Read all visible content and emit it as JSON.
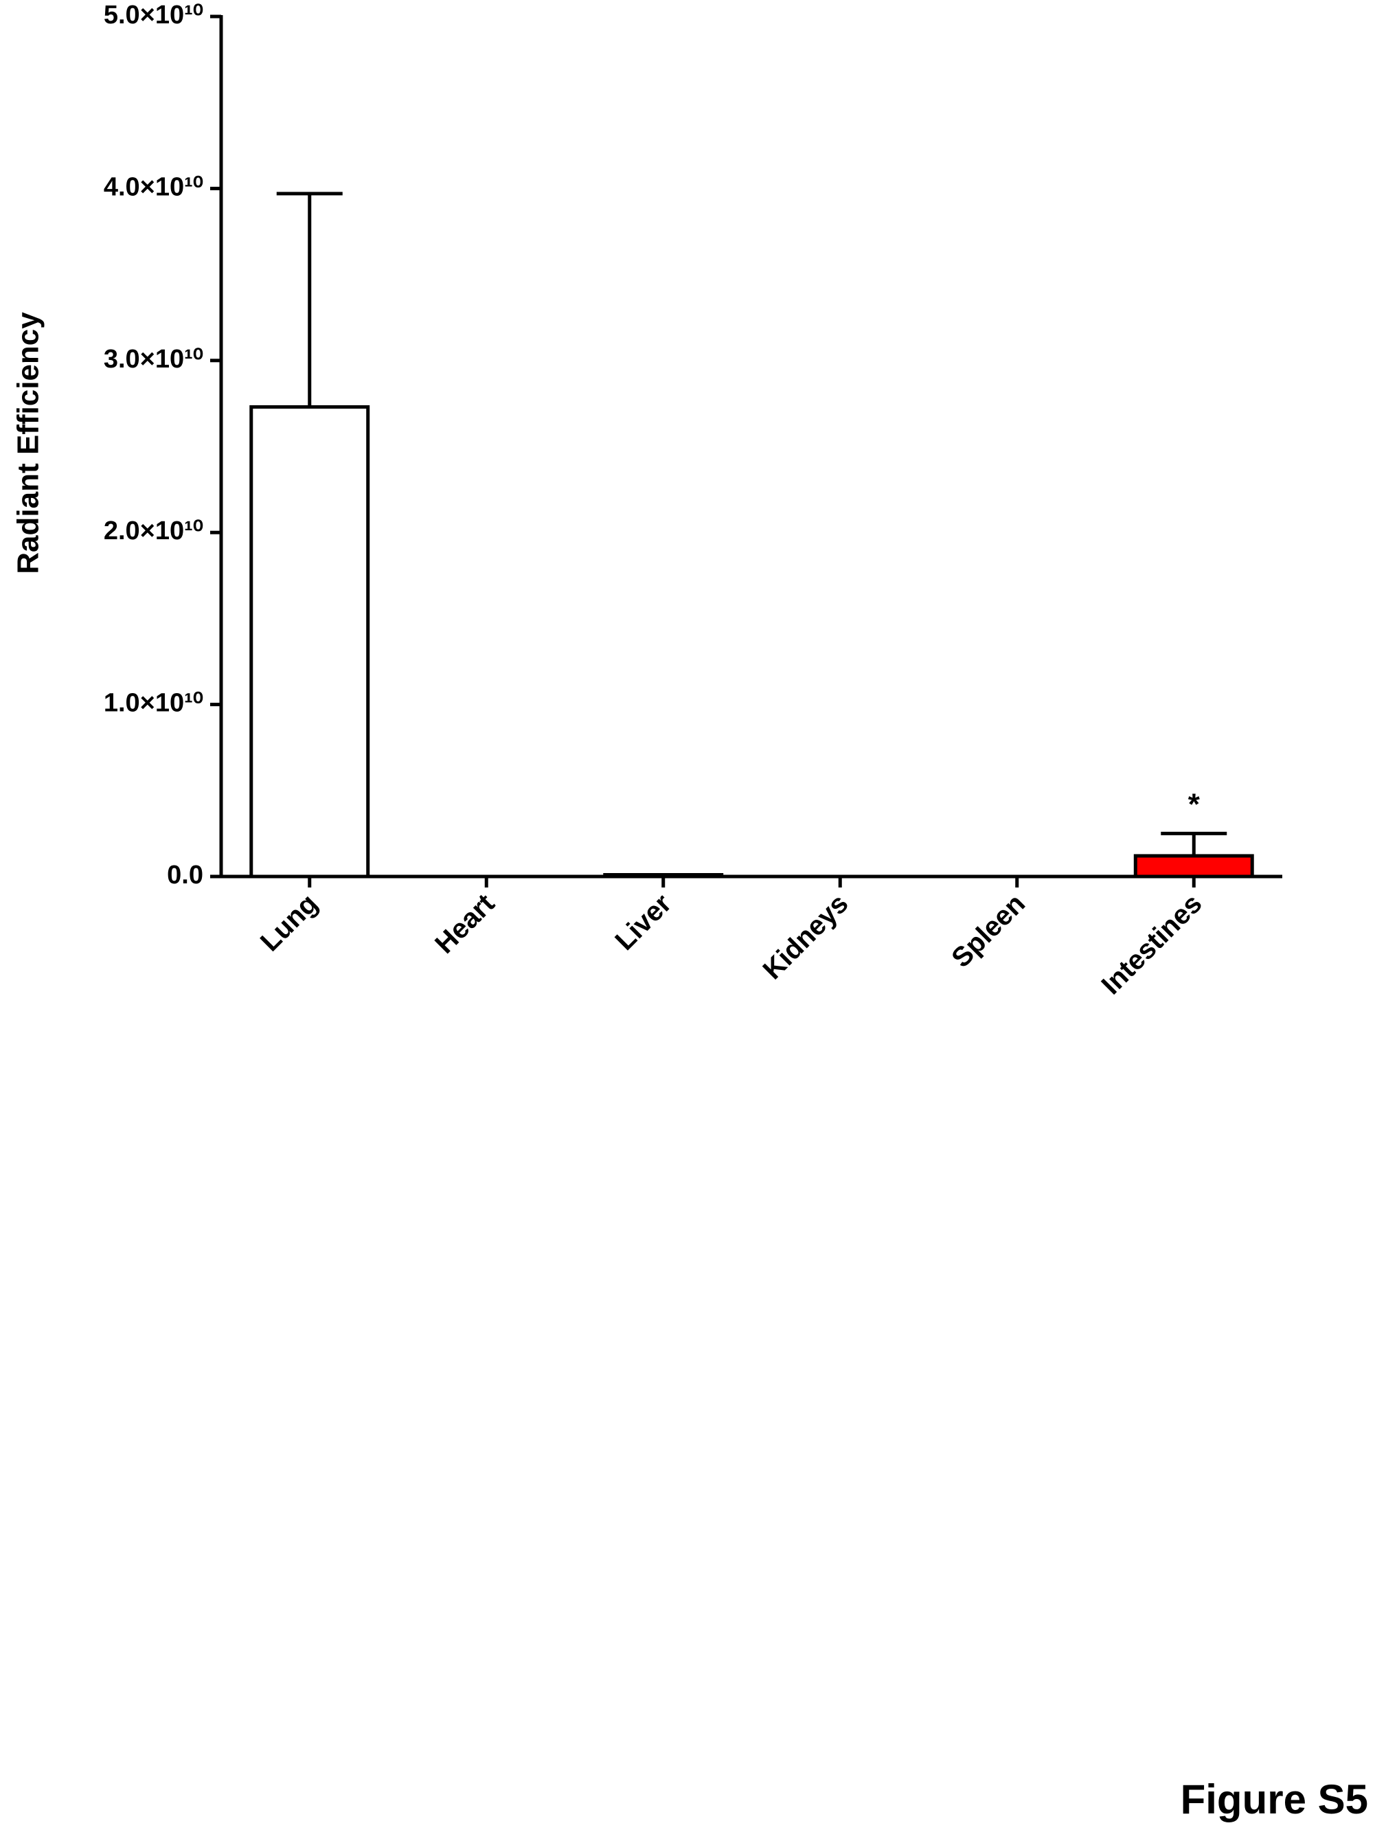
{
  "chart_data": {
    "type": "bar",
    "y_label": "Radiant Efficiency",
    "categories": [
      "Lung",
      "Heart",
      "Liver",
      "Kidneys",
      "Spleen",
      "Intestines"
    ],
    "values": [
      27300000000,
      0,
      100000000,
      0,
      0,
      1200000000
    ],
    "errors": [
      12400000000,
      0,
      0,
      0,
      0,
      1300000000
    ],
    "colors": [
      "#ffffff",
      "#ffffff",
      "#ffffff",
      "#ffffff",
      "#ffffff",
      "#ff0000"
    ],
    "ylim": [
      0,
      50000000000
    ],
    "yticks": [
      {
        "value": 0,
        "label": "0.0"
      },
      {
        "value": 10000000000,
        "label": "1.0×10¹⁰"
      },
      {
        "value": 20000000000,
        "label": "2.0×10¹⁰"
      },
      {
        "value": 30000000000,
        "label": "3.0×10¹⁰"
      },
      {
        "value": 40000000000,
        "label": "4.0×10¹⁰"
      },
      {
        "value": 50000000000,
        "label": "5.0×10¹⁰"
      }
    ],
    "grid": false,
    "annotations": [
      {
        "category": 5,
        "text": "*"
      }
    ]
  },
  "figure_label": "Figure S5"
}
